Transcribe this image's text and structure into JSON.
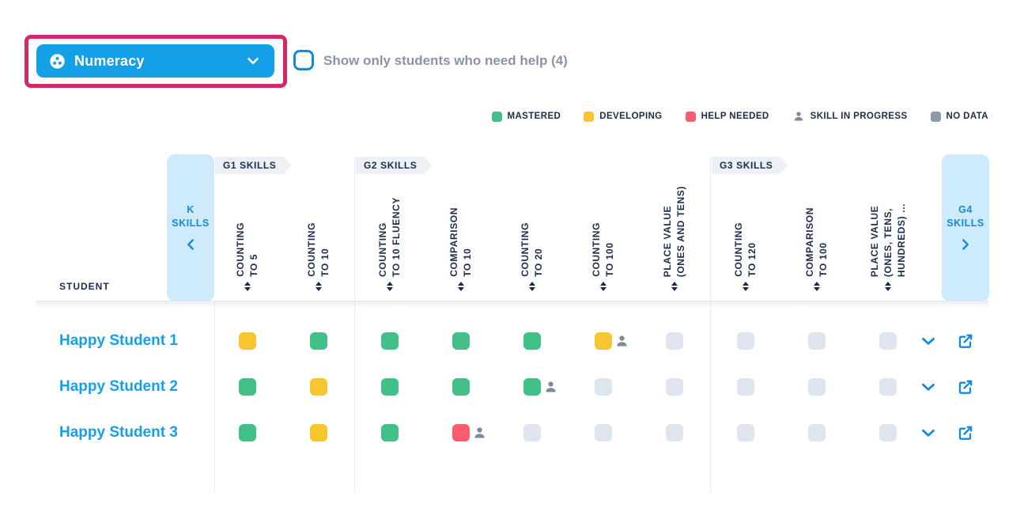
{
  "subject_dropdown": {
    "label": "Numeracy"
  },
  "filter_checkbox": {
    "label": "Show only students who need help (4)",
    "checked": false
  },
  "legend": {
    "items": [
      {
        "label": "MASTERED",
        "swatch": "square",
        "color": "#41C088"
      },
      {
        "label": "DEVELOPING",
        "swatch": "square",
        "color": "#F7C52F"
      },
      {
        "label": "HELP NEEDED",
        "swatch": "square",
        "color": "#FA5B6F"
      },
      {
        "label": "SKILL IN PROGRESS",
        "swatch": "person",
        "color": "#7E8C9A"
      },
      {
        "label": "NO DATA",
        "swatch": "square",
        "color": "#8E99A9"
      }
    ]
  },
  "matrix": {
    "student_column_label": "STUDENT",
    "nav_prev": {
      "label": "K\nSKILLS",
      "direction": "left"
    },
    "nav_next": {
      "label": "G4\nSKILLS",
      "direction": "right"
    },
    "group_tags": [
      "G1 SKILLS",
      "G2 SKILLS",
      "G3 SKILLS"
    ],
    "columns": [
      "COUNTING\nTO 5",
      "COUNTING\nTO 10",
      "COUNTING\nTO 10 FLUENCY",
      "COMPARISON\nTO 10",
      "COUNTING\nTO 20",
      "COUNTING\nTO 100",
      "PLACE VALUE\n(ONES AND TENS)",
      "COUNTING\nTO 120",
      "COMPARISON\nTO 100",
      "PLACE VALUE\n(ONES, TENS,\nHUNDREDS) ..."
    ],
    "rows": [
      {
        "student": "Happy Student 1",
        "cells": [
          {
            "status": "developing",
            "in_progress": false
          },
          {
            "status": "mastered",
            "in_progress": false
          },
          {
            "status": "mastered",
            "in_progress": false
          },
          {
            "status": "mastered",
            "in_progress": false
          },
          {
            "status": "mastered",
            "in_progress": false
          },
          {
            "status": "developing",
            "in_progress": true
          },
          {
            "status": "no-data",
            "in_progress": false
          },
          {
            "status": "no-data",
            "in_progress": false
          },
          {
            "status": "no-data",
            "in_progress": false
          },
          {
            "status": "no-data",
            "in_progress": false
          }
        ]
      },
      {
        "student": "Happy Student 2",
        "cells": [
          {
            "status": "mastered",
            "in_progress": false
          },
          {
            "status": "developing",
            "in_progress": false
          },
          {
            "status": "mastered",
            "in_progress": false
          },
          {
            "status": "mastered",
            "in_progress": false
          },
          {
            "status": "mastered",
            "in_progress": true
          },
          {
            "status": "no-data",
            "in_progress": false
          },
          {
            "status": "no-data",
            "in_progress": false
          },
          {
            "status": "no-data",
            "in_progress": false
          },
          {
            "status": "no-data",
            "in_progress": false
          },
          {
            "status": "no-data",
            "in_progress": false
          }
        ]
      },
      {
        "student": "Happy Student 3",
        "cells": [
          {
            "status": "mastered",
            "in_progress": false
          },
          {
            "status": "developing",
            "in_progress": false
          },
          {
            "status": "mastered",
            "in_progress": false
          },
          {
            "status": "help-needed",
            "in_progress": true
          },
          {
            "status": "no-data",
            "in_progress": false
          },
          {
            "status": "no-data",
            "in_progress": false
          },
          {
            "status": "no-data",
            "in_progress": false
          },
          {
            "status": "no-data",
            "in_progress": false
          },
          {
            "status": "no-data",
            "in_progress": false
          },
          {
            "status": "no-data",
            "in_progress": false
          }
        ]
      }
    ]
  },
  "colors": {
    "mastered": "#41C088",
    "developing": "#F7C52F",
    "help_needed": "#FA5B6F",
    "no_data_cell": "#DFE5EE",
    "no_data_legend": "#8E99A9",
    "person_gray": "#7E8C9A",
    "accent_blue": "#149FE9",
    "link_blue": "#14A1EC",
    "navy_text": "#1C2B4A",
    "panel_light_blue": "#CDEBFA",
    "annotation_pink": "#D2276D"
  }
}
